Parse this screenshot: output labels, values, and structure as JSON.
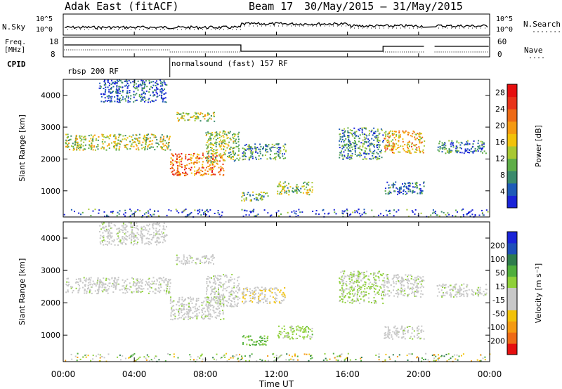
{
  "header": {
    "station": "Adak East (fitACF)",
    "beam_label": "Beam 17",
    "date_range": "30/May/2015 – 31/May/2015"
  },
  "top_panel": {
    "left_label": "N.Sky",
    "right_label": "N.Search",
    "right_dots": "........",
    "left_ticks": [
      "10^5",
      "10^0"
    ],
    "right_ticks": [
      "10^5",
      "10^0"
    ]
  },
  "freq_panel": {
    "left_label_top": "Freq.",
    "left_label_bottom": "[MHz]",
    "right_label": "Nave",
    "right_dots": "....",
    "left_ticks": [
      "18",
      "8"
    ],
    "right_ticks": [
      "60",
      "0"
    ]
  },
  "cpid_panel": {
    "label": "CPID",
    "segments": [
      "rbsp 200 RF",
      "normalsound (fast) 157 RF"
    ]
  },
  "chart_data": [
    {
      "type": "heatmap",
      "name": "power",
      "ylabel": "Slant Range [km]",
      "yticks": [
        "1000",
        "2000",
        "3000",
        "4000"
      ],
      "ylim": [
        180,
        4500
      ],
      "xlim": [
        0,
        24
      ],
      "colorbar": {
        "label": "Power [dB]",
        "ticks": [
          "4",
          "8",
          "12",
          "16",
          "20",
          "24",
          "28"
        ],
        "range": [
          0,
          30
        ],
        "colors": [
          "#1a24d8",
          "#1e5bb8",
          "#3a8a6c",
          "#5fae48",
          "#a8c832",
          "#f2c20a",
          "#f59a12",
          "#ee6a16",
          "#e8341a",
          "#e60f0f"
        ]
      },
      "bands": [
        {
          "t0": 0.1,
          "t1": 6.0,
          "r0": 2300,
          "r1": 2800,
          "v": 14
        },
        {
          "t0": 6.0,
          "t1": 9.0,
          "r0": 1500,
          "r1": 2200,
          "v": 22
        },
        {
          "t0": 8.0,
          "t1": 9.9,
          "r0": 1900,
          "r1": 2900,
          "v": 12
        },
        {
          "t0": 6.3,
          "t1": 8.5,
          "r0": 3200,
          "r1": 3500,
          "v": 14
        },
        {
          "t0": 10.0,
          "t1": 12.5,
          "r0": 2000,
          "r1": 2500,
          "v": 8
        },
        {
          "t0": 10.0,
          "t1": 11.5,
          "r0": 700,
          "r1": 1000,
          "v": 10
        },
        {
          "t0": 12.0,
          "t1": 14.0,
          "r0": 900,
          "r1": 1300,
          "v": 12
        },
        {
          "t0": 15.5,
          "t1": 18.0,
          "r0": 2000,
          "r1": 3000,
          "v": 8
        },
        {
          "t0": 18.0,
          "t1": 20.3,
          "r0": 2200,
          "r1": 2900,
          "v": 18
        },
        {
          "t0": 18.0,
          "t1": 20.3,
          "r0": 900,
          "r1": 1300,
          "v": 6
        },
        {
          "t0": 21.0,
          "t1": 23.8,
          "r0": 2200,
          "r1": 2600,
          "v": 6
        },
        {
          "t0": 2.0,
          "t1": 5.8,
          "r0": 3800,
          "r1": 4500,
          "v": 4
        }
      ]
    },
    {
      "type": "heatmap",
      "name": "velocity",
      "ylabel": "Slant Range [km]",
      "yticks": [
        "1000",
        "2000",
        "3000",
        "4000"
      ],
      "ylim": [
        180,
        4500
      ],
      "xlim": [
        0,
        24
      ],
      "colorbar": {
        "label": "Velocity [m s⁻¹]",
        "ticks": [
          "200",
          "100",
          "50",
          "15",
          "-15",
          "-50",
          "-100",
          "-200"
        ],
        "range": [
          -250,
          250
        ],
        "colors": [
          "#e60f0f",
          "#ee6a16",
          "#f59a12",
          "#f2c20a",
          "#c8c8c8",
          "#c8c8c8",
          "#8fd03a",
          "#4fae3c",
          "#2e7c4c",
          "#1e4fb8",
          "#1a24d8"
        ]
      },
      "bands": [
        {
          "t0": 0.1,
          "t1": 6.0,
          "r0": 2300,
          "r1": 2800,
          "v": 0
        },
        {
          "t0": 6.0,
          "t1": 9.0,
          "r0": 1500,
          "r1": 2200,
          "v": 0
        },
        {
          "t0": 8.0,
          "t1": 9.9,
          "r0": 1900,
          "r1": 2900,
          "v": 0
        },
        {
          "t0": 6.3,
          "t1": 8.5,
          "r0": 3200,
          "r1": 3500,
          "v": 0
        },
        {
          "t0": 10.0,
          "t1": 12.5,
          "r0": 2000,
          "r1": 2500,
          "v": -60
        },
        {
          "t0": 10.0,
          "t1": 11.5,
          "r0": 700,
          "r1": 1000,
          "v": 80
        },
        {
          "t0": 12.0,
          "t1": 14.0,
          "r0": 900,
          "r1": 1300,
          "v": 40
        },
        {
          "t0": 15.5,
          "t1": 18.0,
          "r0": 2000,
          "r1": 3000,
          "v": 30
        },
        {
          "t0": 18.0,
          "t1": 20.3,
          "r0": 2200,
          "r1": 2900,
          "v": 0
        },
        {
          "t0": 18.0,
          "t1": 20.3,
          "r0": 900,
          "r1": 1300,
          "v": 0
        },
        {
          "t0": 21.0,
          "t1": 23.8,
          "r0": 2200,
          "r1": 2600,
          "v": 0
        },
        {
          "t0": 2.0,
          "t1": 5.8,
          "r0": 3800,
          "r1": 4500,
          "v": 0
        }
      ]
    }
  ],
  "xaxis": {
    "label": "Time UT",
    "ticks": [
      "00:00",
      "04:00",
      "08:00",
      "12:00",
      "16:00",
      "20:00",
      "00:00"
    ]
  }
}
